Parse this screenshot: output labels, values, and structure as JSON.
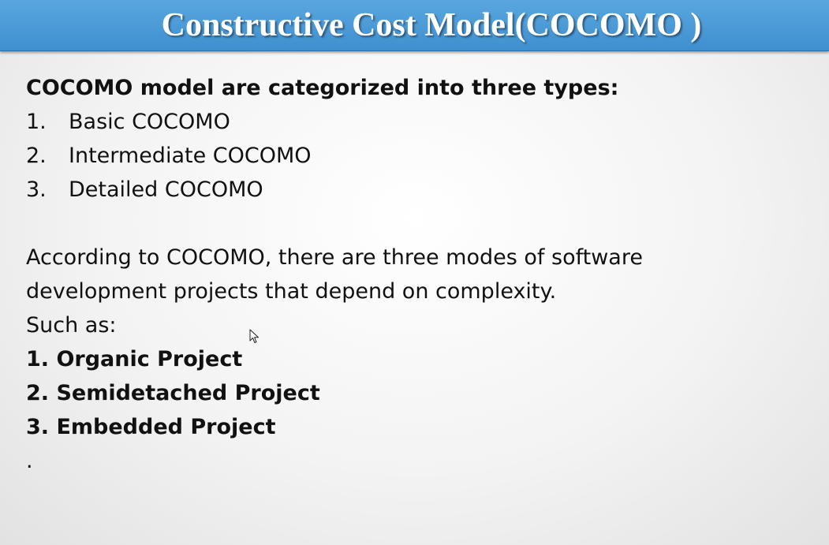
{
  "slide": {
    "title": "Constructive Cost Model(COCOMO )",
    "types_heading": "COCOMO model are categorized into three types:",
    "types": [
      {
        "number": "1.",
        "label": "Basic COCOMO"
      },
      {
        "number": "2.",
        "label": "Intermediate COCOMO"
      },
      {
        "number": "3.",
        "label": "Detailed COCOMO"
      }
    ],
    "modes_paragraph_line1": "According to COCOMO, there are three modes of software",
    "modes_paragraph_line2": "development projects that depend on complexity.",
    "such_as": "Such as:",
    "modes": [
      "1. Organic Project",
      "2. Semidetached Project",
      "3. Embedded Project"
    ],
    "trailing_dot": "."
  },
  "colors": {
    "title_bar": "#4a9ad8",
    "title_text": "#ffffff",
    "body_text": "#111111"
  },
  "icons": {
    "cursor": "mouse-pointer-icon"
  }
}
